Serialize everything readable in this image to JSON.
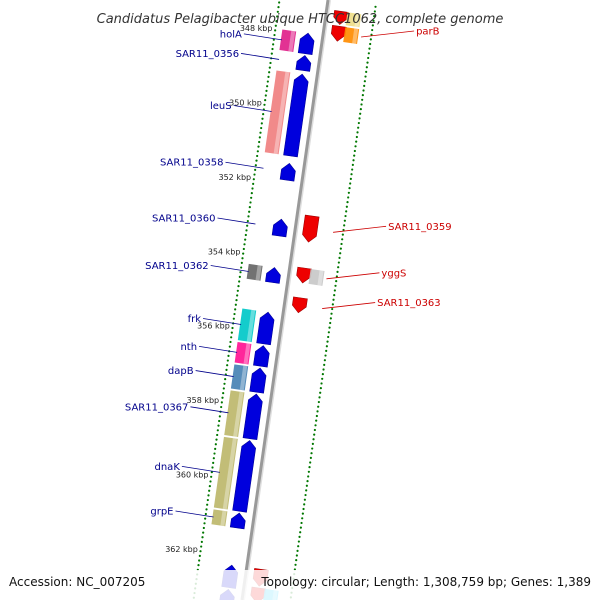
{
  "title": "Candidatus Pelagibacter ubique HTCC1062, complete genome",
  "footer": {
    "accession": "Accession: NC_007205",
    "topology": "Topology: circular; Length: 1,308,759 bp; Genes: 1,389"
  },
  "colors": {
    "backbone": "#999999",
    "forward_cds": "#0000dd",
    "reverse_cds": "#ee0000",
    "left_label": "#00008b",
    "right_label": "#cc0000",
    "tick": "#007700"
  },
  "map": {
    "kbp_start": 347.5,
    "kbp_end": 363.5,
    "kbp_ticks": [
      "348 kbp",
      "350 kbp",
      "352 kbp",
      "354 kbp",
      "356 kbp",
      "358 kbp",
      "360 kbp",
      "362 kbp"
    ],
    "forward_genes": [
      {
        "start": 348.0,
        "end": 348.55,
        "label": "holA",
        "color": "#e0218a"
      },
      {
        "start": 348.6,
        "end": 349.0,
        "label": "SAR11_0356"
      },
      {
        "start": 349.1,
        "end": 351.3,
        "label": "leuS",
        "color": "#f08080"
      },
      {
        "start": 351.5,
        "end": 351.95,
        "label": "SAR11_0358"
      },
      {
        "start": 353.0,
        "end": 353.45,
        "label": "SAR11_0360"
      },
      {
        "start": 354.3,
        "end": 354.7,
        "label": "SAR11_0362",
        "color": "#666666"
      },
      {
        "start": 355.5,
        "end": 356.35,
        "label": "frk",
        "color": "#00c8c8"
      },
      {
        "start": 356.4,
        "end": 356.95,
        "label": "nth",
        "color": "#ff1493"
      },
      {
        "start": 357.0,
        "end": 357.65,
        "label": "dapB",
        "color": "#4682b4"
      },
      {
        "start": 357.7,
        "end": 358.9,
        "label": "SAR11_0367",
        "color": "#bdb76b"
      },
      {
        "start": 358.95,
        "end": 360.85,
        "label": "dnaK",
        "color": "#bdb76b"
      },
      {
        "start": 360.9,
        "end": 361.3,
        "label": "grpE",
        "color": "#bdb76b"
      },
      {
        "start": 362.3,
        "end": 362.9
      },
      {
        "start": 362.95,
        "end": 363.6
      }
    ],
    "reverse_genes": [
      {
        "start": 347.3,
        "end": 347.65,
        "color": "#eedd88"
      },
      {
        "start": 347.7,
        "end": 348.1,
        "label": "parB",
        "color": "#ff8c00"
      },
      {
        "start": 352.8,
        "end": 353.5,
        "label": "SAR11_0359"
      },
      {
        "start": 354.2,
        "end": 354.6,
        "label": "yggS",
        "color": "#c8c8c8"
      },
      {
        "start": 355.0,
        "end": 355.4,
        "label": "SAR11_0363"
      },
      {
        "start": 362.3,
        "end": 362.75
      },
      {
        "start": 362.8,
        "end": 363.2,
        "color": "#00c8ff"
      }
    ]
  }
}
